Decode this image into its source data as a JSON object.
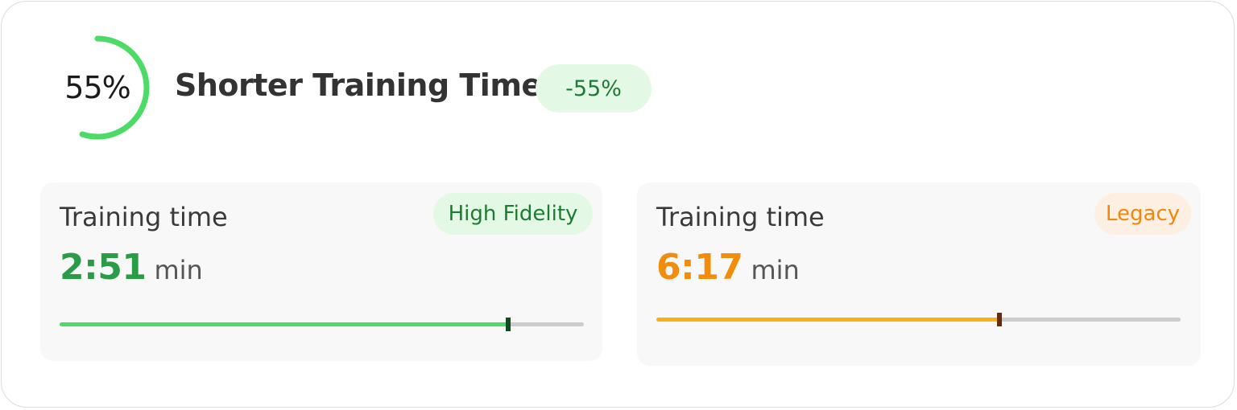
{
  "summary": {
    "ring_label": "55%",
    "ring_progress": 0.55,
    "headline": "Shorter Training Time",
    "delta_badge": "-55%"
  },
  "panels": [
    {
      "title": "Training time",
      "badge": "High Fidelity",
      "value": "2:51",
      "unit": "min",
      "progress": 0.855
    },
    {
      "title": "Training time",
      "badge": "Legacy",
      "value": "6:17",
      "unit": "min",
      "progress": 0.655
    }
  ],
  "colors": {
    "ring": "#4cdb67",
    "high_fidelity_accent": "#2a9b46",
    "legacy_accent": "#f28c0c",
    "high_fidelity_bar": "#4cdb67",
    "legacy_bar": "#fbb012"
  }
}
